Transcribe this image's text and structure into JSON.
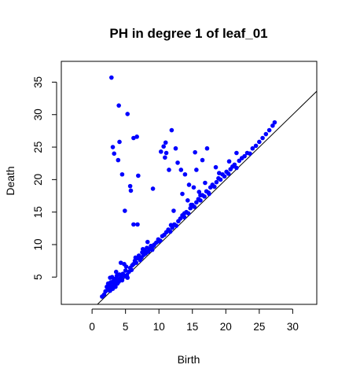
{
  "chart_data": {
    "type": "scatter",
    "title": "PH in degree 1 of leaf_01",
    "xlabel": "Birth",
    "ylabel": "Death",
    "xlim": [
      -4.6,
      33.6
    ],
    "ylim": [
      0.8,
      38.2
    ],
    "x_ticks": [
      0,
      5,
      10,
      15,
      20,
      25,
      30
    ],
    "y_ticks": [
      5,
      10,
      15,
      20,
      25,
      30,
      35
    ],
    "grid": false,
    "legend": "none",
    "point_color": "#0000ff",
    "diagonal": "y = x",
    "series": [
      {
        "points": [
          [
            1.5,
            2.0
          ],
          [
            1.8,
            2.3
          ],
          [
            2.0,
            2.8
          ],
          [
            2.2,
            3.5
          ],
          [
            2.3,
            3.0
          ],
          [
            2.4,
            4.0
          ],
          [
            2.5,
            3.3
          ],
          [
            2.6,
            3.8
          ],
          [
            2.7,
            2.9
          ],
          [
            2.8,
            4.2
          ],
          [
            2.9,
            3.6
          ],
          [
            3.0,
            5.0
          ],
          [
            3.1,
            3.2
          ],
          [
            3.2,
            4.4
          ],
          [
            3.3,
            3.9
          ],
          [
            3.4,
            4.7
          ],
          [
            3.5,
            3.5
          ],
          [
            3.6,
            4.1
          ],
          [
            3.7,
            5.2
          ],
          [
            3.8,
            4.0
          ],
          [
            3.9,
            4.6
          ],
          [
            4.0,
            4.3
          ],
          [
            4.1,
            5.4
          ],
          [
            4.2,
            4.8
          ],
          [
            4.3,
            7.2
          ],
          [
            4.4,
            5.0
          ],
          [
            4.5,
            4.5
          ],
          [
            4.6,
            5.5
          ],
          [
            4.8,
            7.0
          ],
          [
            4.9,
            5.1
          ],
          [
            5.0,
            6.0
          ],
          [
            5.2,
            5.3
          ],
          [
            5.3,
            4.9
          ],
          [
            5.5,
            5.8
          ],
          [
            5.7,
            6.4
          ],
          [
            5.9,
            6.1
          ],
          [
            6.0,
            6.8
          ],
          [
            6.2,
            7.0
          ],
          [
            6.4,
            7.5
          ],
          [
            6.6,
            7.2
          ],
          [
            6.8,
            7.9
          ],
          [
            7.0,
            8.3
          ],
          [
            7.2,
            7.6
          ],
          [
            7.4,
            8.0
          ],
          [
            7.5,
            8.8
          ],
          [
            7.7,
            8.4
          ],
          [
            7.9,
            9.0
          ],
          [
            8.0,
            8.6
          ],
          [
            8.2,
            9.5
          ],
          [
            8.4,
            8.9
          ],
          [
            8.6,
            9.3
          ],
          [
            8.8,
            9.8
          ],
          [
            9.0,
            9.2
          ],
          [
            9.3,
            10.0
          ],
          [
            9.6,
            10.3
          ],
          [
            9.9,
            10.8
          ],
          [
            10.2,
            10.6
          ],
          [
            10.5,
            11.3
          ],
          [
            10.8,
            11.5
          ],
          [
            11.1,
            11.9
          ],
          [
            11.4,
            12.3
          ],
          [
            11.7,
            12.0
          ],
          [
            12.0,
            12.6
          ],
          [
            12.3,
            13.1
          ],
          [
            12.6,
            12.9
          ],
          [
            12.9,
            13.6
          ],
          [
            13.2,
            14.0
          ],
          [
            13.5,
            14.5
          ],
          [
            13.8,
            14.2
          ],
          [
            14.1,
            15.0
          ],
          [
            14.4,
            14.8
          ],
          [
            14.7,
            15.6
          ],
          [
            15.0,
            16.1
          ],
          [
            15.3,
            15.8
          ],
          [
            15.6,
            16.5
          ],
          [
            15.9,
            17.0
          ],
          [
            16.2,
            16.8
          ],
          [
            16.5,
            17.6
          ],
          [
            16.8,
            17.4
          ],
          [
            17.1,
            18.2
          ],
          [
            17.4,
            18.0
          ],
          [
            17.7,
            18.8
          ],
          [
            18.0,
            19.2
          ],
          [
            18.3,
            18.9
          ],
          [
            18.6,
            19.6
          ],
          [
            18.9,
            20.2
          ],
          [
            19.2,
            20.0
          ],
          [
            19.5,
            20.8
          ],
          [
            19.8,
            20.5
          ],
          [
            20.1,
            21.2
          ],
          [
            20.4,
            20.9
          ],
          [
            20.7,
            21.6
          ],
          [
            21.0,
            22.0
          ],
          [
            21.3,
            22.3
          ],
          [
            21.6,
            21.8
          ],
          [
            22.0,
            22.9
          ],
          [
            22.4,
            23.3
          ],
          [
            22.8,
            23.6
          ],
          [
            23.2,
            24.1
          ],
          [
            23.6,
            24.0
          ],
          [
            24.0,
            24.8
          ],
          [
            24.5,
            25.2
          ],
          [
            25.0,
            25.8
          ],
          [
            25.5,
            26.4
          ],
          [
            26.0,
            27.0
          ],
          [
            26.5,
            27.6
          ],
          [
            27.0,
            28.3
          ],
          [
            27.3,
            28.8
          ],
          [
            2.9,
            35.7
          ],
          [
            4.0,
            31.4
          ],
          [
            5.3,
            30.1
          ],
          [
            3.1,
            25.0
          ],
          [
            4.1,
            25.8
          ],
          [
            3.3,
            24.0
          ],
          [
            6.2,
            26.4
          ],
          [
            6.7,
            26.6
          ],
          [
            3.9,
            23.0
          ],
          [
            4.5,
            20.8
          ],
          [
            5.7,
            19.0
          ],
          [
            5.8,
            18.3
          ],
          [
            6.9,
            20.6
          ],
          [
            9.1,
            18.6
          ],
          [
            4.9,
            15.2
          ],
          [
            6.2,
            13.1
          ],
          [
            6.8,
            13.1
          ],
          [
            10.3,
            24.3
          ],
          [
            10.7,
            25.1
          ],
          [
            11.0,
            25.7
          ],
          [
            11.9,
            27.6
          ],
          [
            11.1,
            24.1
          ],
          [
            10.9,
            23.4
          ],
          [
            12.5,
            24.8
          ],
          [
            12.8,
            22.6
          ],
          [
            11.5,
            21.5
          ],
          [
            13.3,
            21.5
          ],
          [
            13.9,
            20.8
          ],
          [
            12.2,
            15.2
          ],
          [
            15.4,
            24.2
          ],
          [
            15.6,
            21.5
          ],
          [
            16.5,
            23.0
          ],
          [
            17.2,
            24.8
          ],
          [
            14.5,
            19.2
          ],
          [
            15.2,
            18.8
          ],
          [
            16.9,
            19.5
          ],
          [
            17.5,
            17.8
          ],
          [
            16.2,
            17.6
          ],
          [
            14.3,
            16.8
          ],
          [
            14.8,
            16.1
          ],
          [
            13.8,
            14.8
          ],
          [
            16.0,
            18.1
          ],
          [
            18.5,
            21.9
          ],
          [
            19.0,
            21.0
          ],
          [
            20.5,
            22.8
          ],
          [
            21.6,
            24.1
          ],
          [
            13.5,
            17.8
          ],
          [
            10.0,
            10.5
          ],
          [
            9.2,
            9.8
          ],
          [
            8.3,
            10.4
          ],
          [
            7.6,
            9.3
          ],
          [
            6.5,
            8.0
          ],
          [
            5.1,
            6.6
          ],
          [
            3.6,
            5.8
          ],
          [
            2.7,
            4.9
          ],
          [
            11.8,
            13.0
          ]
        ]
      }
    ]
  }
}
